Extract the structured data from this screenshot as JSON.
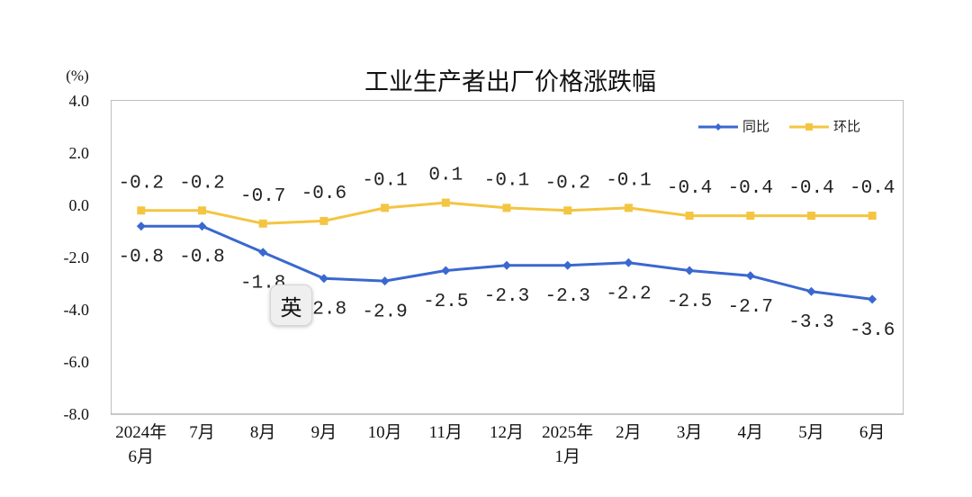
{
  "chart_data": {
    "type": "line",
    "title": "工业生产者出厂价格涨跌幅",
    "ylabel": "(%)",
    "categories": [
      "2024年\n6月",
      "7月",
      "8月",
      "9月",
      "10月",
      "11月",
      "12月",
      "2025年\n1月",
      "2月",
      "3月",
      "4月",
      "5月",
      "6月"
    ],
    "yticks": [
      "4.0",
      "2.0",
      "0.0",
      "-2.0",
      "-4.0",
      "-6.0",
      "-8.0"
    ],
    "ylim": [
      -8,
      4
    ],
    "grid": false,
    "legend": "top-right",
    "series": [
      {
        "name": "同比",
        "color": "#3a68cf",
        "marker": "diamond",
        "data_labels": "below",
        "values": [
          -0.8,
          -0.8,
          -1.8,
          -2.8,
          -2.9,
          -2.5,
          -2.3,
          -2.3,
          -2.2,
          -2.5,
          -2.7,
          -3.3,
          -3.6
        ]
      },
      {
        "name": "环比",
        "color": "#f4c542",
        "marker": "square",
        "data_labels": "above",
        "values": [
          -0.2,
          -0.2,
          -0.7,
          -0.6,
          -0.1,
          0.1,
          -0.1,
          -0.2,
          -0.1,
          -0.4,
          -0.4,
          -0.4,
          -0.4
        ]
      }
    ]
  },
  "ime_indicator": {
    "label": "英"
  }
}
